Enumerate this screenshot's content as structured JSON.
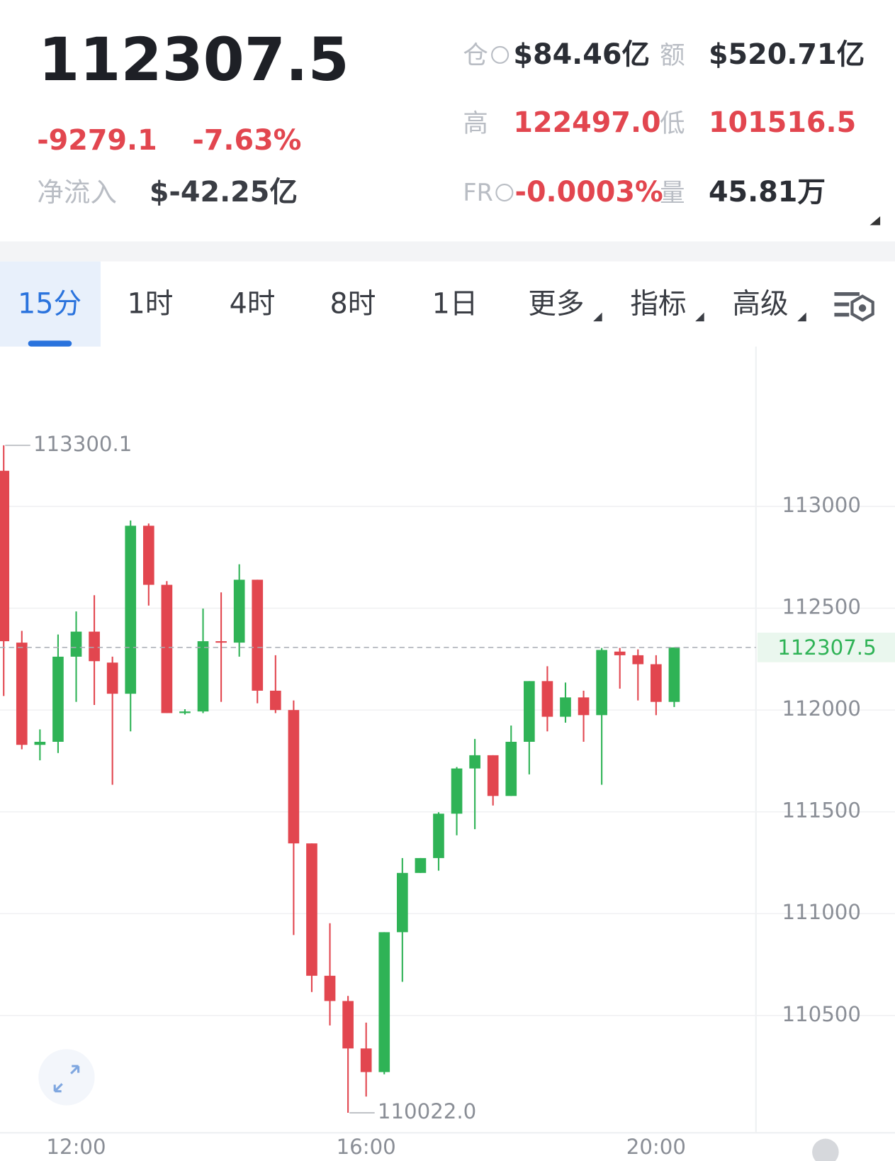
{
  "header": {
    "price": "112307.5",
    "change": "-9279.1",
    "change_pct": "-7.63%",
    "inflow_label": "净流入",
    "inflow": "$-42.25亿",
    "oi_label": "仓",
    "oi": "$84.46亿",
    "turnover_label": "额",
    "turnover": "$520.71亿",
    "high_label": "高",
    "high": "122497.0",
    "low_label": "低",
    "low": "101516.5",
    "fr_label": "FR",
    "fr": "-0.0003%",
    "volume_label": "量",
    "volume": "45.81万"
  },
  "tabs": [
    "15分",
    "1时",
    "4时",
    "8时",
    "1日",
    "更多",
    "指标",
    "高级"
  ],
  "chart_data": {
    "type": "candlestick",
    "categories": [
      null,
      null,
      null,
      null,
      "12:00",
      null,
      null,
      null,
      null,
      null,
      null,
      null,
      null,
      null,
      null,
      null,
      null,
      null,
      null,
      null,
      "16:00",
      null,
      null,
      null,
      null,
      null,
      null,
      null,
      null,
      null,
      null,
      null,
      null,
      null,
      null,
      null,
      "20:00",
      null
    ],
    "open": [
      113175,
      112331,
      111829,
      111844,
      112262,
      112385,
      112233,
      112080,
      112905,
      112615,
      111985,
      111993,
      112338,
      112331,
      112640,
      112095,
      112000,
      111345,
      110695,
      110571,
      110338,
      110222,
      110909,
      111200,
      111273,
      111491,
      111713,
      111778,
      111578,
      111844,
      112142,
      111967,
      112062,
      111975,
      112287,
      112269,
      112225,
      112040
    ],
    "high": [
      113300.1,
      112389,
      111905,
      112371,
      112484,
      112564,
      112262,
      112931,
      112916,
      112633,
      112004,
      112498,
      112578,
      112716,
      112640,
      112269,
      112047,
      111345,
      110953,
      110596,
      110465,
      110909,
      111273,
      111273,
      111498,
      111720,
      111858,
      111778,
      111924,
      112142,
      112215,
      112135,
      112095,
      112305,
      112305,
      112298,
      112269,
      112307.5
    ],
    "low": [
      112069,
      111807,
      111753,
      111789,
      112040,
      112025,
      111633,
      111895,
      112513,
      111985,
      111978,
      111985,
      112040,
      112262,
      112033,
      111985,
      110895,
      110615,
      110451,
      110022,
      110102,
      110211,
      110665,
      111200,
      111211,
      111385,
      111415,
      111531,
      111578,
      111684,
      111895,
      111938,
      111844,
      111633,
      112105,
      112047,
      111975,
      112015
    ],
    "close": [
      112338,
      111829,
      111844,
      112262,
      112385,
      112240,
      112080,
      112905,
      112615,
      111985,
      111993,
      112338,
      112331,
      112640,
      112095,
      112000,
      111345,
      110695,
      110571,
      110338,
      110222,
      110909,
      111200,
      111273,
      111491,
      111713,
      111778,
      111578,
      111844,
      112142,
      111967,
      112062,
      111975,
      112295,
      112269,
      112225,
      112040,
      112307.5
    ],
    "up_color": "#2fb356",
    "down_color": "#e2464f",
    "ylim": [
      109924,
      113785
    ],
    "yticks": [
      110500,
      111000,
      111500,
      112000,
      112500,
      113000
    ],
    "grid": true,
    "last_price": {
      "value": 112307.5,
      "label": "112307.5"
    },
    "annotations": [
      {
        "value": 113300.1,
        "label": "113300.1"
      },
      {
        "value": 110022,
        "label": "110022.0"
      }
    ]
  }
}
